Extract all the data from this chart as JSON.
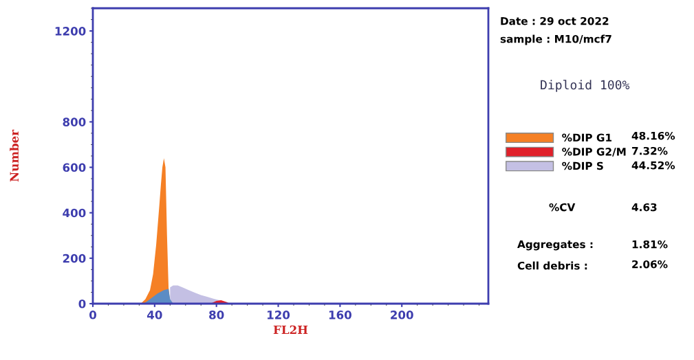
{
  "chart_data": {
    "type": "area",
    "xlabel": "FL2H",
    "ylabel": "Number",
    "xlim": [
      0,
      256
    ],
    "xticks": [
      0,
      40,
      80,
      120,
      160,
      200
    ],
    "ylim": [
      0,
      1300
    ],
    "yticks": [
      0,
      200,
      400,
      600,
      800,
      1200
    ],
    "grid": false,
    "legend": "right",
    "series": [
      {
        "name": "%DIP S",
        "color": "#c4c0e4",
        "x": [
          50,
          52,
          55,
          58,
          62,
          66,
          70,
          74,
          78,
          82,
          86,
          88
        ],
        "values": [
          72,
          80,
          80,
          72,
          60,
          48,
          38,
          30,
          22,
          15,
          5,
          0
        ]
      },
      {
        "name": "%DIP G1",
        "color": "#f58025",
        "x": [
          31,
          34,
          37,
          39,
          41,
          43,
          44,
          45,
          46,
          47,
          48,
          49,
          50
        ],
        "values": [
          0,
          20,
          60,
          130,
          260,
          430,
          520,
          600,
          640,
          600,
          300,
          70,
          0
        ]
      },
      {
        "name": "%DIP G2/M",
        "color": "#e0202a",
        "x": [
          76,
          80,
          83,
          86,
          89
        ],
        "values": [
          0,
          12,
          15,
          8,
          0
        ]
      },
      {
        "color": "#5b8cc4",
        "x": [
          33,
          38,
          42,
          46,
          49,
          50,
          52
        ],
        "values": [
          0,
          25,
          45,
          60,
          65,
          20,
          0
        ]
      }
    ],
    "annotations": [
      "Date : 29 oct 2022",
      "sample : M10/mcf7",
      "Diploid 100%",
      "48.16%",
      "7.32%",
      "44.52%",
      "%CV",
      "4.63",
      "Aggregates :",
      "1.81%",
      "Cell debris :",
      "2.06%"
    ]
  }
}
